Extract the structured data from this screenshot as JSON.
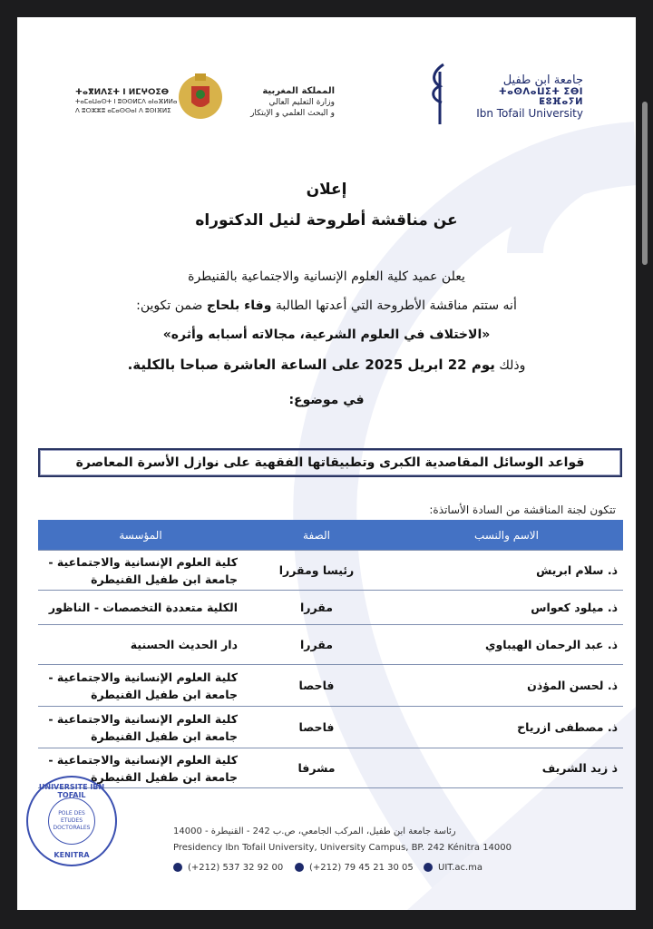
{
  "header": {
    "amazigh_line1": "ⵜⴰⴳⵍⴷⵉⵜ ⵏ ⵍⵎⵖⵔⵉⴱ",
    "amazigh_line2": "ⵜⴰⵎⴰⵡⴰⵙⵜ ⵏ ⵓⵙⵙⵍⵎⴷ ⴰⵏⴰⴼⵍⵍⴰ",
    "amazigh_line3": "ⴷ ⵓⵔⵣⵣⵓ ⴰⵎⴰⵙⵙⴰⵏ ⴷ ⵓⵙⵏⴼⵍⵉ",
    "ministry_line1": "المملكة المغربية",
    "ministry_line2": "وزارة التعليم العالي",
    "ministry_line3": "و البحث العلمي و الإبتكار",
    "university_ar": "جامعة ابن طفيل",
    "university_tif": "ⵜⴰⵙⴷⴰⵡⵉⵜ ⵉⴱⵏ ⵟⵓⴼⴰⵢⵍ",
    "university_en": "Ibn Tofail University",
    "brand_color": "#1d2a6b"
  },
  "announcement": {
    "title": "إعلان",
    "subtitle": "عن مناقشة أطروحة لنيل الدكتوراه",
    "line1": "يعلن عميد كلية العلوم الإنسانية والاجتماعية بالقنيطرة",
    "line2_start": "أنه ستتم مناقشة الأطروحة التي أعدتها الطالبة ",
    "student": "وفاء بلحاج",
    "line2_end": " ضمن تكوين:",
    "program": "«الاختلاف في العلوم الشرعية، مجالاته أسبابه وأثره»",
    "date_prefix": "وذلك ",
    "date": "يوم 22 ابريل 2025 على الساعة العاشرة صباحا بالكلية.",
    "topic_label": "في موضوع:",
    "topic": "قواعد الوسائل المقاصدية الكبرى وتطبيقاتها الفقهية على نوازل الأسرة المعاصرة"
  },
  "committee": {
    "intro": "تتكون لجنة المناقشة من السادة الأساتذة:",
    "headers": [
      "الاسم والنسب",
      "الصفة",
      "المؤسسة"
    ],
    "header_color": "#4472c4",
    "rows": [
      {
        "name": "ذ. سلام ابريش",
        "role": "رئيسا ومقررا",
        "institution": "كلية العلوم الإنسانية والاجتماعية - جامعة ابن طفيل القنيطرة"
      },
      {
        "name": "ذ. ميلود كعواس",
        "role": "مقررا",
        "institution": "الكلية متعددة التخصصات - الناظور"
      },
      {
        "name": "ذ. عبد الرحمان الهيباوي",
        "role": "مقررا",
        "institution": "دار الحديث الحسنية"
      },
      {
        "name": "ذ. لحسن المؤذن",
        "role": "فاحصا",
        "institution": "كلية العلوم الإنسانية والاجتماعية - جامعة ابن طفيل القنيطرة"
      },
      {
        "name": "ذ. مصطفى ازرياح",
        "role": "فاحصا",
        "institution": "كلية العلوم الإنسانية والاجتماعية - جامعة ابن طفيل القنيطرة"
      },
      {
        "name": "ذ زيد الشريف",
        "role": "مشرفا",
        "institution": "كلية العلوم الإنسانية والاجتماعية - جامعة ابن طفيل القنيطرة"
      }
    ]
  },
  "stamp": {
    "ring_top": "UNIVERSITE IBN TOFAIL",
    "ring_bottom": "KENITRA",
    "center": "POLE DES ETUDES DOCTORALES"
  },
  "footer": {
    "address_ar": "رئاسة جامعة ابن طفيل، المركب الجامعي، ص.ب 242 - القنيطرة - 14000",
    "address_en": "Presidency Ibn Tofail University, University Campus, BP. 242 Kénitra 14000",
    "phone": "(+212) 537 32 92 00",
    "fax": "(+212) 79 45 21 30 05",
    "website": "UIT.ac.ma"
  }
}
